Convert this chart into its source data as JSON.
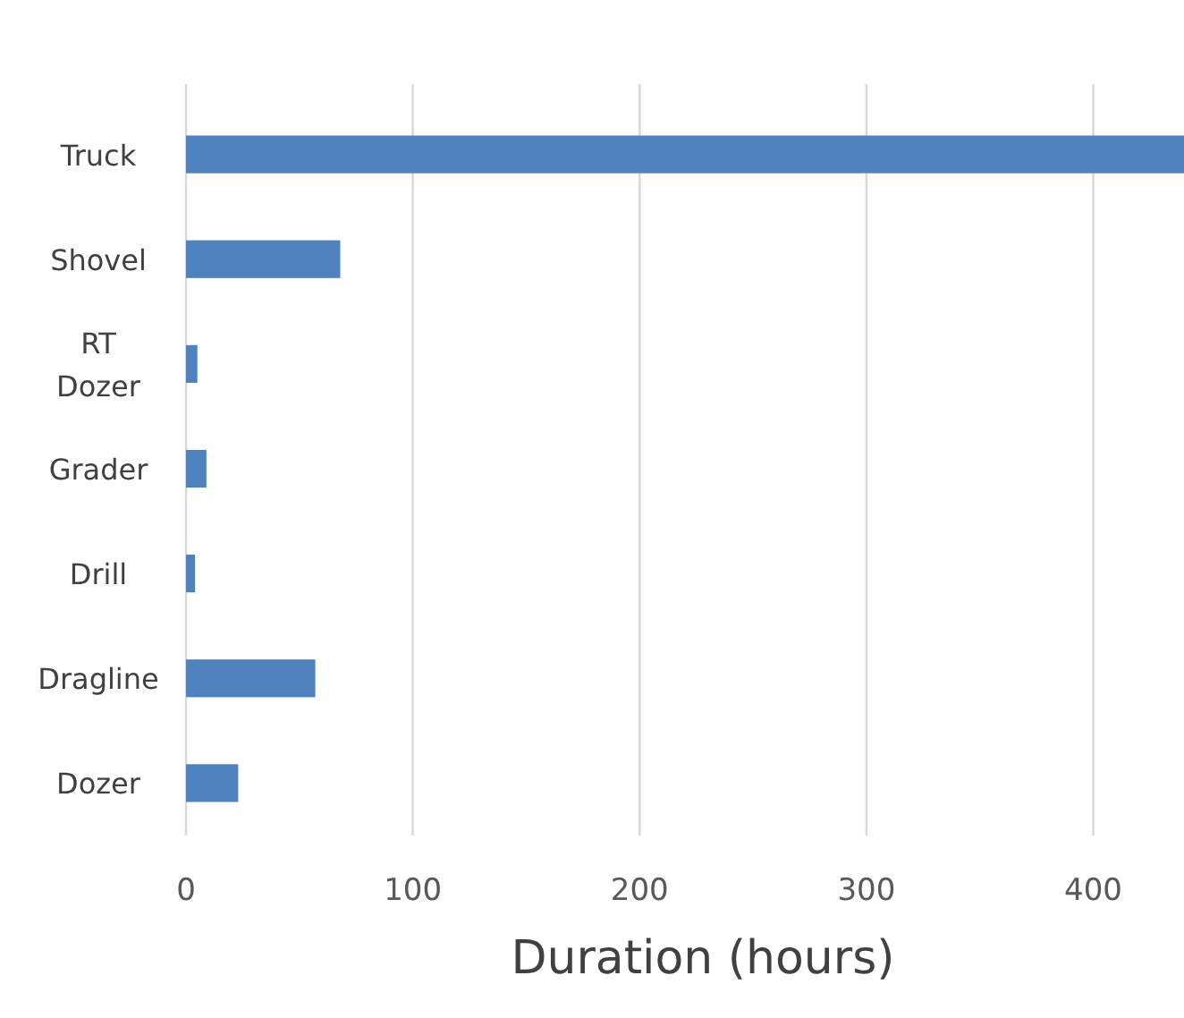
{
  "chart_data": {
    "type": "bar",
    "orientation": "horizontal",
    "xlabel": "Duration (hours)",
    "categories": [
      "Truck",
      "Shovel",
      "RT Dozer",
      "Grader",
      "Drill",
      "Dragline",
      "Dozer"
    ],
    "values": [
      440,
      68,
      5,
      9,
      4,
      57,
      23
    ],
    "color": "#4f81bd",
    "xlim": [
      0,
      440
    ],
    "xticks": [
      0,
      100,
      200,
      300,
      400
    ],
    "grid": "x"
  }
}
